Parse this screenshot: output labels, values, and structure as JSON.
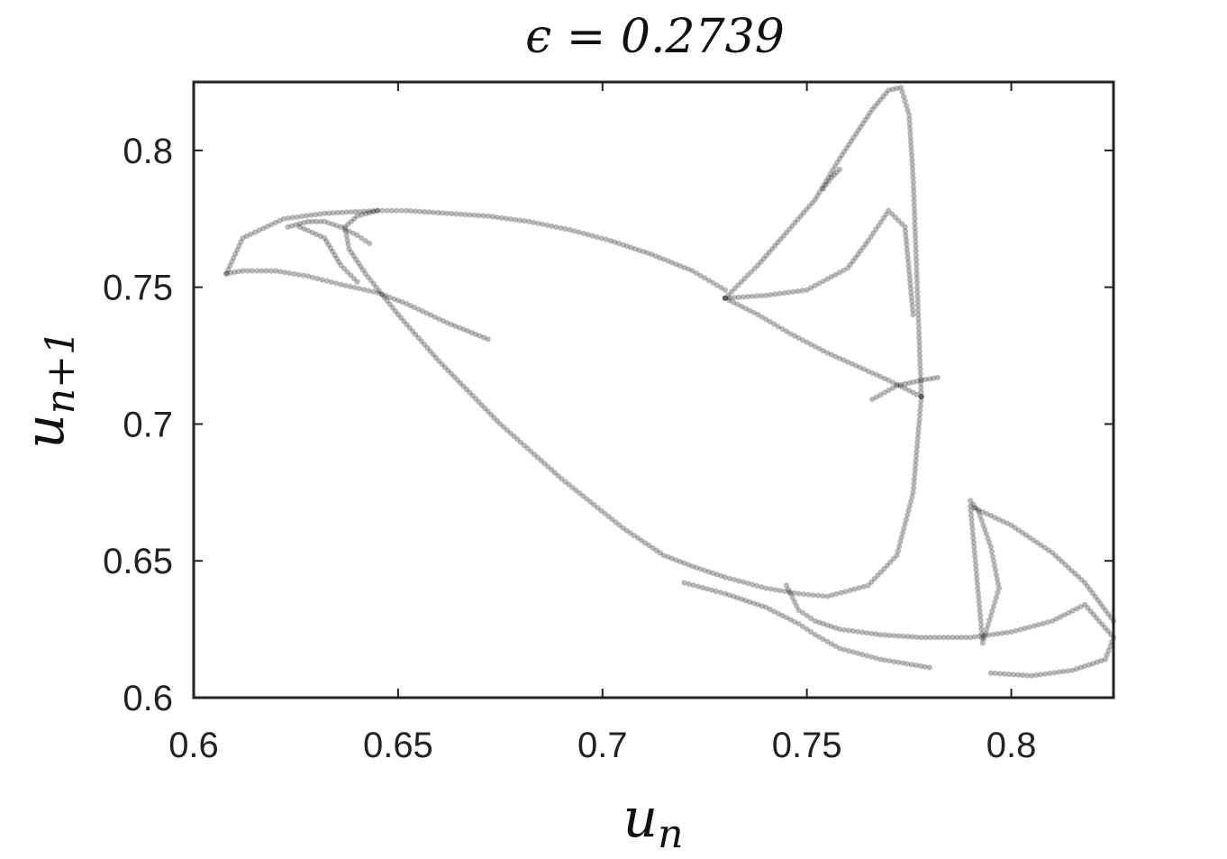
{
  "chart_data": {
    "type": "scatter",
    "title": "ϵ = 0.2739",
    "xlabel": "u",
    "xlabel_sub": "n",
    "ylabel": "u",
    "ylabel_sub": "n+1",
    "xlim": [
      0.6,
      0.825
    ],
    "ylim": [
      0.6,
      0.825
    ],
    "x_ticks": [
      0.6,
      0.65,
      0.7,
      0.75,
      0.8
    ],
    "x_tick_labels": [
      "0.6",
      "0.65",
      "0.7",
      "0.75",
      "0.8"
    ],
    "y_ticks": [
      0.6,
      0.65,
      0.7,
      0.75,
      0.8
    ],
    "y_tick_labels": [
      "0.6",
      "0.65",
      "0.7",
      "0.75",
      "0.8"
    ],
    "grid": false,
    "marker_color": "#000000",
    "marker_opacity": 0.28,
    "branches": [
      {
        "x": [
          0.608,
          0.612,
          0.622,
          0.632,
          0.645,
          0.652,
          0.662,
          0.672,
          0.682,
          0.692,
          0.702,
          0.712,
          0.722,
          0.73
        ],
        "y": [
          0.755,
          0.768,
          0.775,
          0.777,
          0.778,
          0.778,
          0.777,
          0.776,
          0.774,
          0.771,
          0.767,
          0.762,
          0.756,
          0.749
        ]
      },
      {
        "x": [
          0.608,
          0.612,
          0.62,
          0.628,
          0.636,
          0.645,
          0.652,
          0.662,
          0.672
        ],
        "y": [
          0.755,
          0.756,
          0.756,
          0.754,
          0.751,
          0.748,
          0.744,
          0.737,
          0.731
        ]
      },
      {
        "x": [
          0.623,
          0.628,
          0.632,
          0.636,
          0.64,
          0.643
        ],
        "y": [
          0.772,
          0.774,
          0.774,
          0.772,
          0.769,
          0.766
        ]
      },
      {
        "x": [
          0.626,
          0.632,
          0.634,
          0.636,
          0.64
        ],
        "y": [
          0.772,
          0.768,
          0.763,
          0.758,
          0.752
        ]
      },
      {
        "x": [
          0.645,
          0.64,
          0.637,
          0.638,
          0.642,
          0.65,
          0.66,
          0.675,
          0.69,
          0.705,
          0.715,
          0.722,
          0.73,
          0.74,
          0.748,
          0.755,
          0.765,
          0.772,
          0.776,
          0.778
        ],
        "y": [
          0.778,
          0.776,
          0.772,
          0.764,
          0.755,
          0.74,
          0.723,
          0.7,
          0.68,
          0.662,
          0.652,
          0.648,
          0.644,
          0.64,
          0.638,
          0.637,
          0.641,
          0.652,
          0.675,
          0.71
        ]
      },
      {
        "x": [
          0.778,
          0.777,
          0.776,
          0.775,
          0.773,
          0.77,
          0.766,
          0.762,
          0.758,
          0.752,
          0.745,
          0.738,
          0.73
        ],
        "y": [
          0.71,
          0.75,
          0.79,
          0.813,
          0.823,
          0.822,
          0.815,
          0.806,
          0.797,
          0.782,
          0.77,
          0.758,
          0.746
        ]
      },
      {
        "x": [
          0.73,
          0.738,
          0.746,
          0.755,
          0.764,
          0.77,
          0.774,
          0.778
        ],
        "y": [
          0.746,
          0.74,
          0.733,
          0.726,
          0.72,
          0.716,
          0.713,
          0.71
        ]
      },
      {
        "x": [
          0.73,
          0.74,
          0.75,
          0.76,
          0.765,
          0.77,
          0.774,
          0.776
        ],
        "y": [
          0.746,
          0.747,
          0.749,
          0.757,
          0.767,
          0.778,
          0.772,
          0.74
        ]
      },
      {
        "x": [
          0.766,
          0.772,
          0.778,
          0.782
        ],
        "y": [
          0.709,
          0.714,
          0.716,
          0.717
        ]
      },
      {
        "x": [
          0.758,
          0.756,
          0.754
        ],
        "y": [
          0.793,
          0.79,
          0.786
        ]
      },
      {
        "x": [
          0.72,
          0.73,
          0.74,
          0.748,
          0.752,
          0.758,
          0.768,
          0.78
        ],
        "y": [
          0.642,
          0.638,
          0.633,
          0.627,
          0.623,
          0.618,
          0.614,
          0.611
        ]
      },
      {
        "x": [
          0.745,
          0.748,
          0.752,
          0.758,
          0.768,
          0.778,
          0.79,
          0.8,
          0.81,
          0.818,
          0.825,
          0.823,
          0.815,
          0.805,
          0.795
        ],
        "y": [
          0.641,
          0.632,
          0.628,
          0.625,
          0.623,
          0.622,
          0.622,
          0.624,
          0.628,
          0.634,
          0.622,
          0.614,
          0.61,
          0.608,
          0.609
        ]
      },
      {
        "x": [
          0.79,
          0.792,
          0.795,
          0.797,
          0.795,
          0.793,
          0.79,
          0.8,
          0.81,
          0.818,
          0.825
        ],
        "y": [
          0.672,
          0.668,
          0.655,
          0.64,
          0.63,
          0.62,
          0.67,
          0.663,
          0.653,
          0.642,
          0.628
        ]
      }
    ]
  }
}
